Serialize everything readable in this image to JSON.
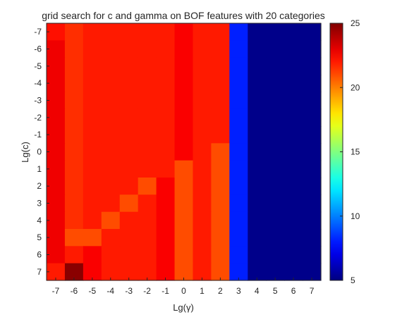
{
  "chart_data": {
    "type": "heatmap",
    "title": "grid search for c and gamma on BOF features with 20 categories",
    "xlabel": "Lg(γ)",
    "ylabel": "Lg(c)",
    "x": [
      "-7",
      "-6",
      "-5",
      "-4",
      "-3",
      "-2",
      "-1",
      "0",
      "1",
      "2",
      "3",
      "4",
      "5",
      "6",
      "7"
    ],
    "y": [
      "-7",
      "-6",
      "-5",
      "-4",
      "-3",
      "-2",
      "-1",
      "0",
      "1",
      "2",
      "3",
      "4",
      "5",
      "6",
      "7"
    ],
    "z": [
      [
        22.2,
        21.6,
        22.0,
        22.0,
        22.0,
        22.0,
        22.0,
        22.6,
        22.0,
        22.0,
        8.1,
        5.2,
        5.2,
        5.2,
        5.2
      ],
      [
        22.8,
        21.6,
        22.0,
        22.0,
        22.0,
        22.0,
        22.0,
        22.6,
        22.0,
        22.0,
        8.1,
        5.2,
        5.2,
        5.2,
        5.2
      ],
      [
        22.8,
        21.6,
        22.0,
        22.0,
        22.0,
        22.0,
        22.0,
        22.6,
        22.0,
        22.0,
        8.1,
        5.2,
        5.2,
        5.2,
        5.2
      ],
      [
        22.8,
        21.6,
        22.0,
        22.0,
        22.0,
        22.0,
        22.0,
        22.6,
        22.0,
        22.0,
        8.1,
        5.2,
        5.2,
        5.2,
        5.2
      ],
      [
        22.8,
        21.6,
        22.0,
        22.0,
        22.0,
        22.0,
        22.0,
        22.6,
        22.0,
        22.0,
        8.1,
        5.2,
        5.2,
        5.2,
        5.2
      ],
      [
        22.8,
        21.6,
        22.0,
        22.0,
        22.0,
        22.0,
        22.0,
        22.6,
        22.0,
        22.0,
        8.1,
        5.2,
        5.2,
        5.2,
        5.2
      ],
      [
        22.8,
        21.6,
        22.0,
        22.0,
        22.0,
        22.0,
        22.0,
        22.6,
        22.0,
        22.0,
        8.1,
        5.2,
        5.2,
        5.2,
        5.2
      ],
      [
        22.8,
        21.6,
        22.0,
        22.0,
        22.0,
        22.0,
        22.0,
        22.6,
        22.0,
        21.0,
        8.1,
        5.2,
        5.2,
        5.2,
        5.2
      ],
      [
        22.8,
        21.6,
        22.0,
        22.0,
        22.0,
        22.0,
        22.0,
        21.0,
        22.0,
        21.0,
        8.1,
        5.2,
        5.2,
        5.2,
        5.2
      ],
      [
        22.8,
        21.6,
        22.0,
        22.0,
        22.0,
        21.0,
        22.6,
        21.0,
        22.0,
        21.0,
        8.1,
        5.2,
        5.2,
        5.2,
        5.2
      ],
      [
        22.8,
        21.6,
        22.0,
        22.0,
        21.0,
        22.0,
        22.6,
        21.0,
        22.0,
        21.0,
        8.1,
        5.2,
        5.2,
        5.2,
        5.2
      ],
      [
        22.8,
        21.6,
        22.0,
        21.0,
        22.0,
        22.0,
        22.6,
        21.0,
        22.0,
        21.0,
        8.1,
        5.2,
        5.2,
        5.2,
        5.2
      ],
      [
        22.8,
        21.0,
        21.0,
        22.0,
        22.0,
        22.0,
        22.6,
        21.0,
        22.0,
        21.0,
        8.1,
        5.2,
        5.2,
        5.2,
        5.2
      ],
      [
        22.8,
        22.0,
        22.6,
        22.0,
        22.0,
        22.0,
        22.6,
        21.0,
        22.0,
        21.0,
        8.1,
        5.2,
        5.2,
        5.2,
        5.2
      ],
      [
        22.0,
        24.8,
        22.6,
        22.0,
        22.0,
        22.0,
        22.6,
        21.0,
        22.0,
        21.0,
        8.1,
        5.2,
        5.2,
        5.2,
        5.2
      ]
    ],
    "colorbar": {
      "range": [
        5,
        25
      ],
      "ticks": [
        "5",
        "10",
        "15",
        "20",
        "25"
      ],
      "colormap": "jet"
    },
    "grid": false
  }
}
